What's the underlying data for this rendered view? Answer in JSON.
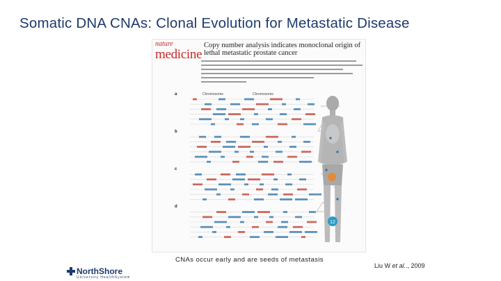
{
  "slide": {
    "title": "Somatic DNA CNAs: Clonal Evolution for Metastatic Disease",
    "caption": "CNAs occur early and are seeds of metastasis",
    "citation_author": "Liu W ",
    "citation_etal": "et al.",
    "citation_year": "., 2009"
  },
  "article": {
    "journal_line1": "nature",
    "journal_line2": "medicine",
    "headline": "Copy number analysis indicates monoclonal origin of lethal metastatic prostate cancer",
    "panel_labels": [
      "a",
      "b",
      "c",
      "d"
    ],
    "chart_headers": [
      "Chromosome",
      "Chromosome"
    ],
    "marker": "12"
  },
  "logo": {
    "name": "NorthShore",
    "subtitle": "University HealthSystem"
  },
  "colors": {
    "title": "#1e3a6e",
    "journal": "#c62828",
    "figure_blue": "#2a6fa8"
  }
}
